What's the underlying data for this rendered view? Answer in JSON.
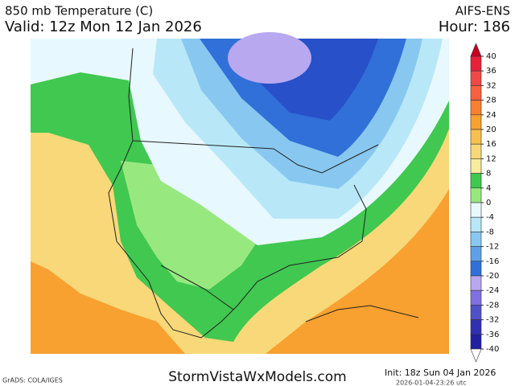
{
  "header": {
    "title": "850 mb Temperature (C)",
    "valid": "Valid: 12z Mon 12 Jan 2026",
    "model": "AIFS-ENS",
    "hour": "Hour: 186"
  },
  "colorbar": {
    "ticks": [
      40,
      36,
      32,
      28,
      24,
      20,
      16,
      12,
      8,
      4,
      0,
      -4,
      -8,
      -12,
      -16,
      -20,
      -24,
      -28,
      -32,
      -36,
      -40
    ],
    "colors": [
      "#c80020",
      "#e8203c",
      "#f04848",
      "#f86040",
      "#f88030",
      "#f8a030",
      "#f8c050",
      "#f8d878",
      "#f8eca0",
      "#40c850",
      "#98e880",
      "#e8f8ff",
      "#b8e8f8",
      "#88c8f0",
      "#60a0e8",
      "#3070d8",
      "#b8a8f0",
      "#8070e0",
      "#5050c8",
      "#3030b0",
      "#2020a0",
      "#ffffff"
    ]
  },
  "footer": {
    "credit": "GrADS: COLA/IGES",
    "site": "StormVistaWxModels.com",
    "init": "Init: 18z Sun 04 Jan 2026",
    "stamp": "2026-01-04-23:26 utc"
  }
}
